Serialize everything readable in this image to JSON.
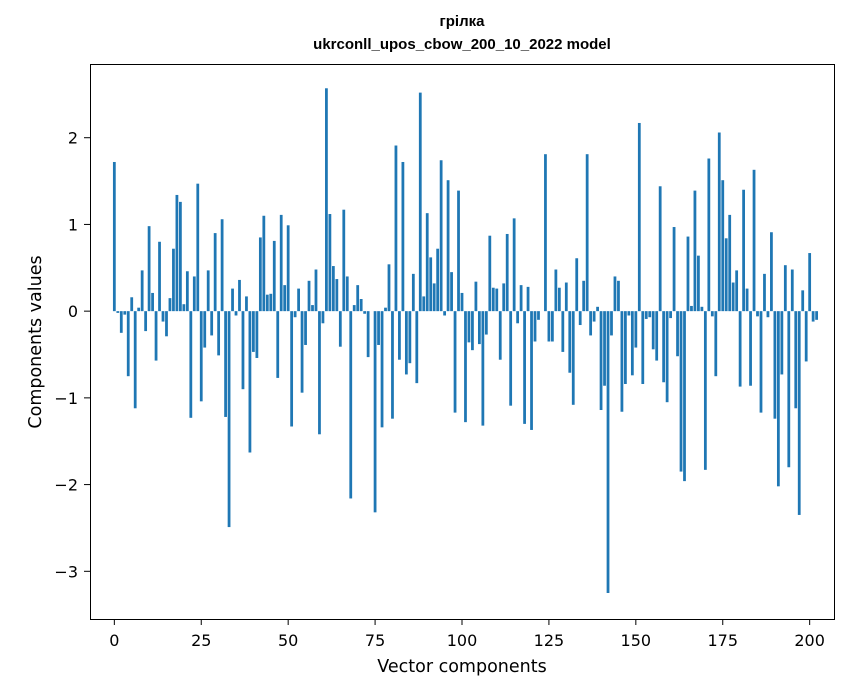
{
  "chart_data": {
    "type": "bar",
    "title": "грілка",
    "subtitle": "ukrconll_upos_cbow_200_10_2022 model",
    "xlabel": "Vector components",
    "ylabel": "Components values",
    "xlim": [
      -7,
      207
    ],
    "ylim": [
      -3.55,
      2.85
    ],
    "xticks": [
      0,
      25,
      50,
      75,
      100,
      125,
      150,
      175,
      200
    ],
    "yticks": [
      -3,
      -2,
      -1,
      0,
      1,
      2
    ],
    "ytick_labels": [
      "−3",
      "−2",
      "−1",
      "0",
      "1",
      "2"
    ],
    "grid": false,
    "color": "#1f77b4",
    "values": [
      1.72,
      -0.02,
      -0.25,
      -0.04,
      -0.75,
      0.16,
      -1.12,
      0.04,
      0.47,
      -0.23,
      0.98,
      0.21,
      -0.57,
      0.8,
      -0.12,
      -0.29,
      0.15,
      0.72,
      1.34,
      1.26,
      0.08,
      0.46,
      -1.23,
      0.4,
      1.47,
      -1.04,
      -0.42,
      0.47,
      -0.28,
      0.9,
      -0.51,
      1.06,
      -1.22,
      -2.49,
      0.26,
      -0.05,
      0.36,
      -0.9,
      0.17,
      -1.63,
      -0.47,
      -0.54,
      0.85,
      1.1,
      0.19,
      0.2,
      0.81,
      -0.77,
      1.11,
      0.3,
      0.99,
      -1.33,
      -0.07,
      0.26,
      -0.94,
      -0.39,
      0.35,
      0.07,
      0.48,
      -1.42,
      -0.14,
      2.57,
      1.12,
      0.52,
      0.37,
      -0.41,
      1.17,
      0.4,
      -2.16,
      0.07,
      0.3,
      0.14,
      -0.03,
      -0.53,
      0.0,
      -2.32,
      -0.39,
      -1.34,
      0.04,
      0.54,
      -1.24,
      1.91,
      -0.56,
      1.72,
      -0.73,
      -0.6,
      0.43,
      -0.83,
      2.52,
      0.17,
      1.13,
      0.62,
      0.32,
      0.72,
      1.74,
      -0.05,
      1.51,
      0.45,
      -1.17,
      1.39,
      0.21,
      -1.28,
      -0.36,
      -0.45,
      0.34,
      -0.38,
      -1.32,
      -0.27,
      0.87,
      0.27,
      0.26,
      -0.56,
      0.32,
      0.89,
      -1.09,
      1.07,
      -0.14,
      0.3,
      -1.3,
      0.28,
      -1.37,
      -0.35,
      -0.1,
      0.0,
      1.81,
      -0.35,
      -0.35,
      0.48,
      0.27,
      -0.47,
      0.33,
      -0.71,
      -1.08,
      0.61,
      -0.16,
      0.35,
      1.81,
      -0.28,
      -0.12,
      0.05,
      -1.14,
      -0.86,
      -3.25,
      -0.28,
      0.4,
      0.35,
      -1.16,
      -0.84,
      -0.05,
      -0.74,
      -0.42,
      2.17,
      -0.84,
      -0.09,
      -0.07,
      -0.44,
      -0.57,
      1.44,
      -0.82,
      -1.05,
      -0.08,
      0.97,
      -0.52,
      -1.85,
      -1.96,
      0.86,
      0.06,
      1.39,
      0.64,
      0.05,
      -1.83,
      1.76,
      -0.06,
      -0.75,
      2.06,
      1.51,
      0.84,
      1.11,
      0.33,
      0.47,
      -0.87,
      1.4,
      0.26,
      -0.86,
      1.63,
      -0.06,
      -1.17,
      0.43,
      -0.07,
      0.91,
      -1.24,
      -2.02,
      -0.73,
      0.53,
      -1.8,
      0.48,
      -1.12,
      -2.35,
      0.24,
      -0.58,
      0.67,
      -0.12,
      -0.1
    ]
  }
}
